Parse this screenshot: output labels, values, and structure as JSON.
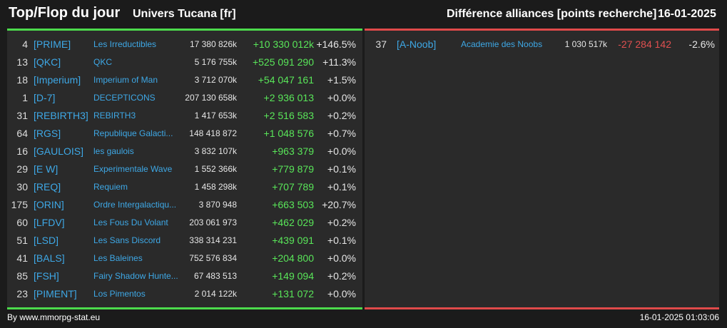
{
  "header": {
    "title": "Top/Flop du jour",
    "universe": "Univers Tucana [fr]",
    "category": "Différence alliances [points recherche]",
    "date": "16-01-2025"
  },
  "colors": {
    "positive": "#59e659",
    "negative": "#e05050",
    "link": "#3ea8e6",
    "top_border": "#4cdb4c",
    "flop_border": "#e04a4a"
  },
  "top": [
    {
      "rank": "4",
      "tag": "[PRIME]",
      "name": "Les Irreductibles",
      "points": "17 380 826k",
      "diff": "+10 330 012k",
      "pct": "+146.5%"
    },
    {
      "rank": "13",
      "tag": "[QKC]",
      "name": "QKC",
      "points": "5 176 755k",
      "diff": "+525 091 290",
      "pct": "+11.3%"
    },
    {
      "rank": "18",
      "tag": "[Imperium]",
      "name": "Imperium of Man",
      "points": "3 712 070k",
      "diff": "+54 047 161",
      "pct": "+1.5%"
    },
    {
      "rank": "1",
      "tag": "[D-7]",
      "name": "DECEPTICONS",
      "points": "207 130 658k",
      "diff": "+2 936 013",
      "pct": "+0.0%"
    },
    {
      "rank": "31",
      "tag": "[REBIRTH3]",
      "name": "REBIRTH3",
      "points": "1 417 653k",
      "diff": "+2 516 583",
      "pct": "+0.2%"
    },
    {
      "rank": "64",
      "tag": "[RGS]",
      "name": "Republique Galacti...",
      "points": "148 418 872",
      "diff": "+1 048 576",
      "pct": "+0.7%"
    },
    {
      "rank": "16",
      "tag": "[GAULOIS]",
      "name": "les gaulois",
      "points": "3 832 107k",
      "diff": "+963 379",
      "pct": "+0.0%"
    },
    {
      "rank": "29",
      "tag": "[E W]",
      "name": "Experimentale Wave",
      "points": "1 552 366k",
      "diff": "+779 879",
      "pct": "+0.1%"
    },
    {
      "rank": "30",
      "tag": "[REQ]",
      "name": "Requiem",
      "points": "1 458 298k",
      "diff": "+707 789",
      "pct": "+0.1%"
    },
    {
      "rank": "175",
      "tag": "[ORIN]",
      "name": "Ordre Intergalactiqu...",
      "points": "3 870 948",
      "diff": "+663 503",
      "pct": "+20.7%"
    },
    {
      "rank": "60",
      "tag": "[LFDV]",
      "name": "Les Fous Du Volant",
      "points": "203 061 973",
      "diff": "+462 029",
      "pct": "+0.2%"
    },
    {
      "rank": "51",
      "tag": "[LSD]",
      "name": "Les Sans Discord",
      "points": "338 314 231",
      "diff": "+439 091",
      "pct": "+0.1%"
    },
    {
      "rank": "41",
      "tag": "[BALS]",
      "name": "Les Baleines",
      "points": "752 576 834",
      "diff": "+204 800",
      "pct": "+0.0%"
    },
    {
      "rank": "85",
      "tag": "[FSH]",
      "name": "Fairy Shadow Hunte...",
      "points": "67 483 513",
      "diff": "+149 094",
      "pct": "+0.2%"
    },
    {
      "rank": "23",
      "tag": "[PIMENT]",
      "name": "Los Pimentos",
      "points": "2 014 122k",
      "diff": "+131 072",
      "pct": "+0.0%"
    }
  ],
  "flop": [
    {
      "rank": "37",
      "tag": "[A-Noob]",
      "name": "Academie des Noobs",
      "points": "1 030 517k",
      "diff": "-27 284 142",
      "pct": "-2.6%"
    }
  ],
  "footer": {
    "source": "By www.mmorpg-stat.eu",
    "timestamp": "16-01-2025 01:03:06"
  }
}
